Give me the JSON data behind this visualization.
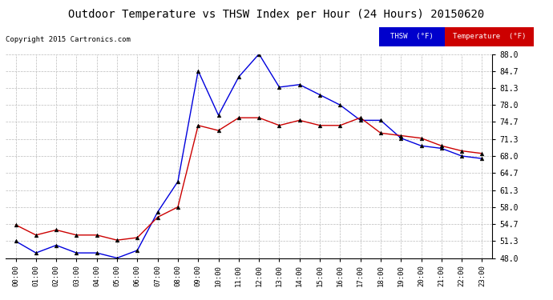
{
  "title": "Outdoor Temperature vs THSW Index per Hour (24 Hours) 20150620",
  "copyright": "Copyright 2015 Cartronics.com",
  "hours": [
    "00:00",
    "01:00",
    "02:00",
    "03:00",
    "04:00",
    "05:00",
    "06:00",
    "07:00",
    "08:00",
    "09:00",
    "10:00",
    "11:00",
    "12:00",
    "13:00",
    "14:00",
    "15:00",
    "16:00",
    "17:00",
    "18:00",
    "19:00",
    "20:00",
    "21:00",
    "22:00",
    "23:00"
  ],
  "thsw": [
    51.3,
    49.0,
    50.5,
    49.0,
    49.0,
    48.0,
    49.5,
    57.0,
    63.0,
    84.7,
    76.0,
    83.5,
    88.0,
    81.5,
    82.0,
    80.0,
    78.0,
    75.0,
    75.0,
    71.5,
    70.0,
    69.5,
    68.0,
    67.5
  ],
  "temperature": [
    54.5,
    52.5,
    53.5,
    52.5,
    52.5,
    51.5,
    52.0,
    56.0,
    58.0,
    74.0,
    73.0,
    75.5,
    75.5,
    74.0,
    75.0,
    74.0,
    74.0,
    75.5,
    72.5,
    72.0,
    71.5,
    70.0,
    69.0,
    68.5
  ],
  "thsw_color": "#0000DD",
  "temp_color": "#CC0000",
  "ylim": [
    48.0,
    88.0
  ],
  "yticks": [
    48.0,
    51.3,
    54.7,
    58.0,
    61.3,
    64.7,
    68.0,
    71.3,
    74.7,
    78.0,
    81.3,
    84.7,
    88.0
  ],
  "background_color": "#ffffff",
  "grid_color": "#bbbbbb",
  "legend_thsw_bg": "#0000CC",
  "legend_temp_bg": "#CC0000"
}
